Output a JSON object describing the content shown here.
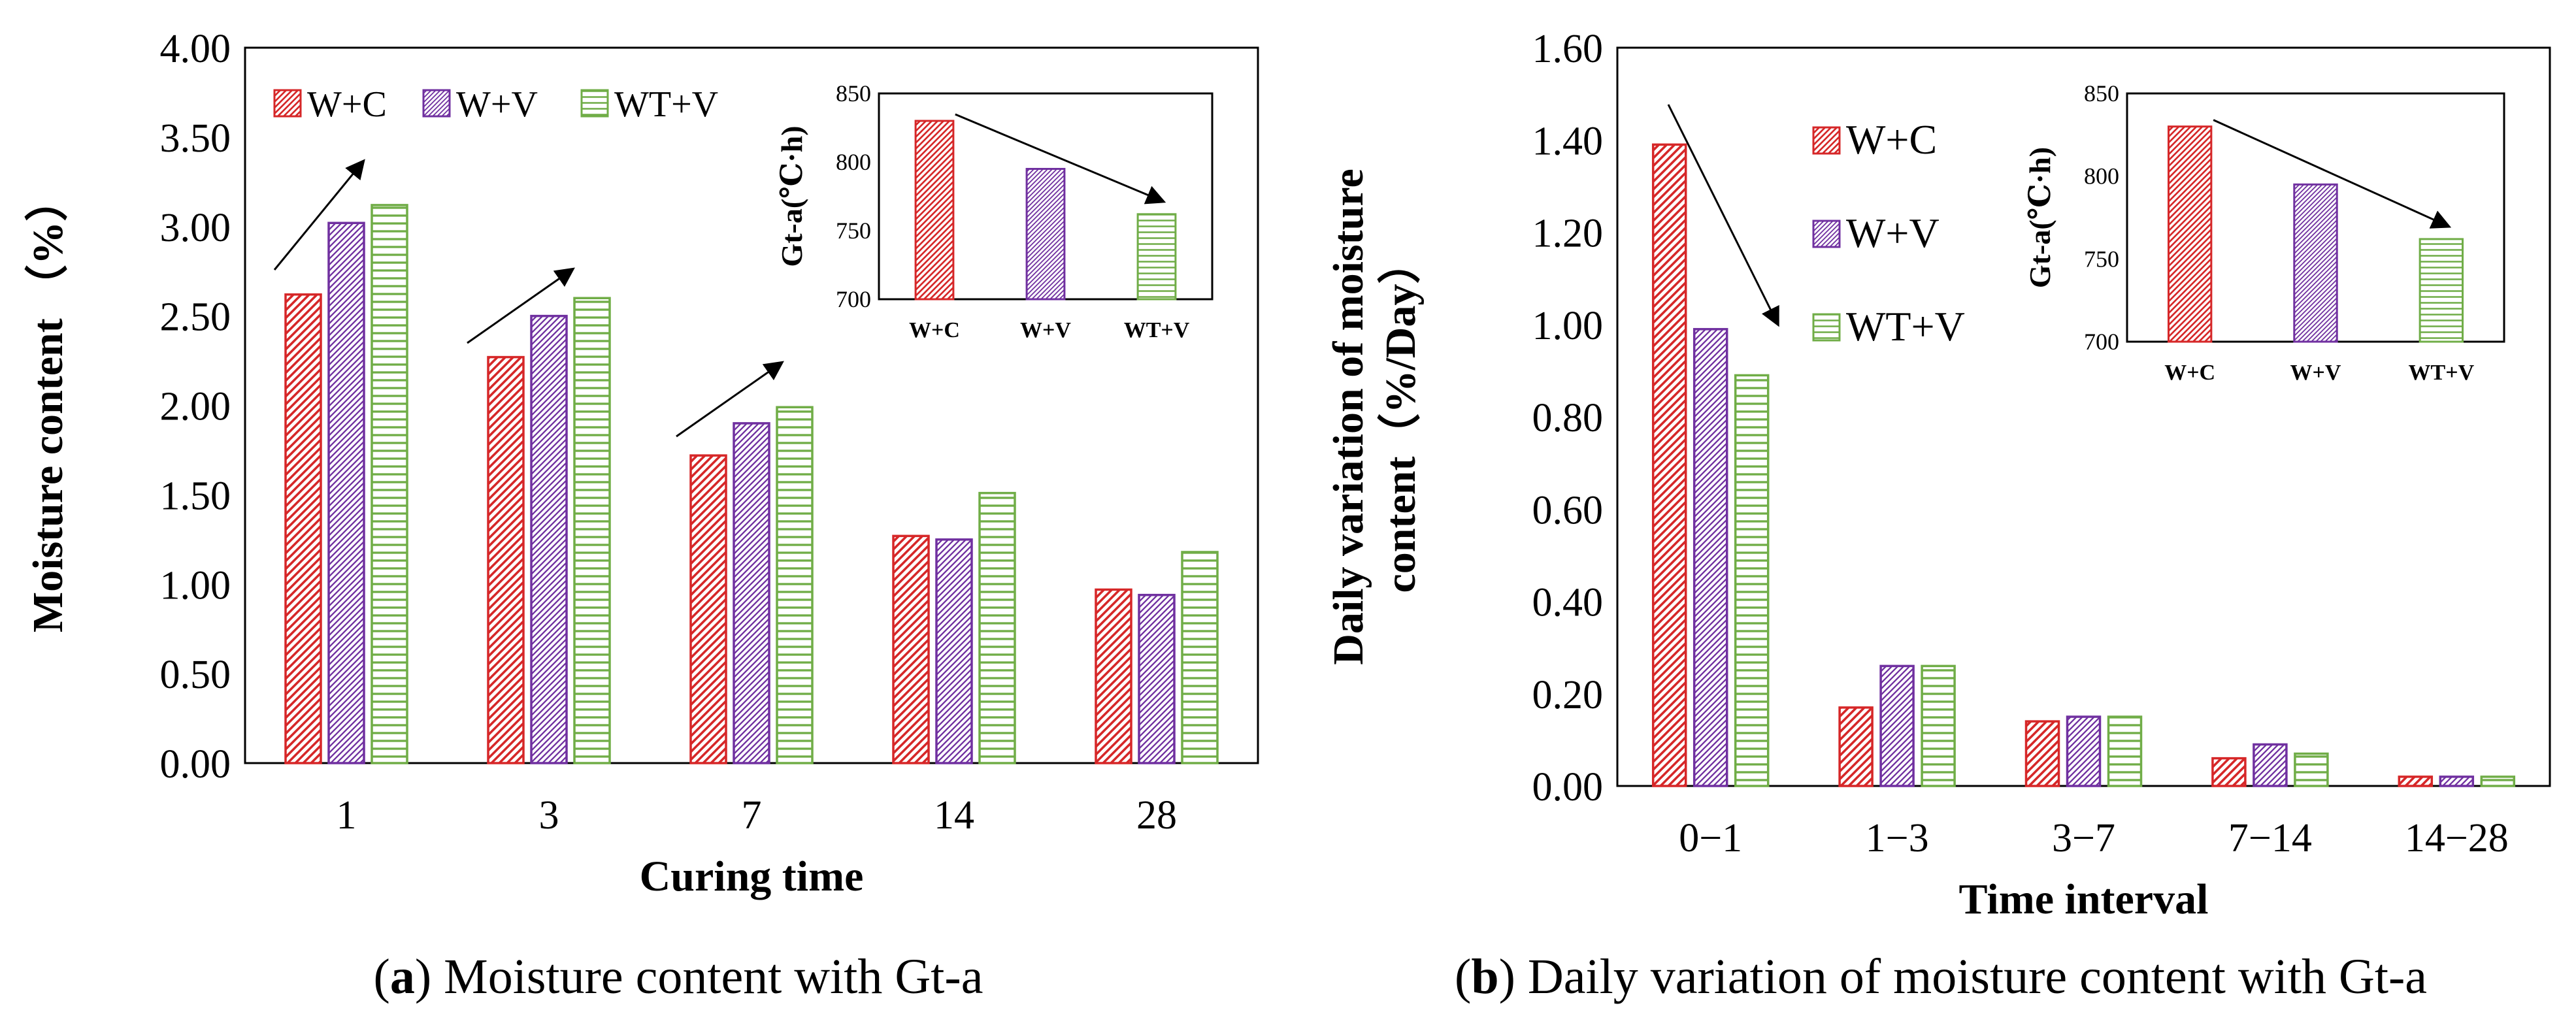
{
  "colors": {
    "red": "#d62728",
    "purple": "#7030a0",
    "green": "#70ad47",
    "axis": "#000000"
  },
  "series_patterns": [
    "diagonal-lines",
    "dense-diagonal-lines",
    "horizontal-lines"
  ],
  "chart_data": [
    {
      "id": "a",
      "type": "bar",
      "caption_letter": "a",
      "caption_rest": ") Moisture content with Gt-a",
      "title": "",
      "xlabel": "Curing time",
      "ylabel": "Moisture content （%）",
      "categories": [
        "1",
        "3",
        "7",
        "14",
        "28"
      ],
      "ylim": [
        0,
        4.0
      ],
      "yticks": [
        "0.00",
        "0.50",
        "1.00",
        "1.50",
        "2.00",
        "2.50",
        "3.00",
        "3.50",
        "4.00"
      ],
      "legend": [
        "W+C",
        "W+V",
        "WT+V"
      ],
      "legend_position": "top-left",
      "series": [
        {
          "name": "W+C",
          "values": [
            2.62,
            2.27,
            1.72,
            1.27,
            0.97
          ]
        },
        {
          "name": "W+V",
          "values": [
            3.02,
            2.5,
            1.9,
            1.25,
            0.94
          ]
        },
        {
          "name": "WT+V",
          "values": [
            3.12,
            2.6,
            1.99,
            1.51,
            1.18
          ]
        }
      ],
      "annotations": [
        "increasing trend arrows over groups 1, 3 and 7"
      ],
      "inset": {
        "type": "bar",
        "ylabel": "Gt-a(℃·h)",
        "categories": [
          "W+C",
          "W+V",
          "WT+V"
        ],
        "values": [
          830,
          795,
          762
        ],
        "ylim": [
          700,
          850
        ],
        "yticks": [
          "700",
          "750",
          "800",
          "850"
        ],
        "position": "top-right",
        "annotation": "decreasing trend arrow"
      }
    },
    {
      "id": "b",
      "type": "bar",
      "caption_letter": "b",
      "caption_rest": ") Daily variation of moisture content with Gt-a",
      "title": "",
      "xlabel": "Time interval",
      "ylabel_lines": [
        "Daily variation of moisture",
        "content（%/Day）"
      ],
      "categories": [
        "0−1",
        "1−3",
        "3−7",
        "7−14",
        "14−28"
      ],
      "ylim": [
        0,
        1.6
      ],
      "yticks": [
        "0.00",
        "0.20",
        "0.40",
        "0.60",
        "0.80",
        "1.00",
        "1.20",
        "1.40",
        "1.60"
      ],
      "legend": [
        "W+C",
        "W+V",
        "WT+V"
      ],
      "legend_position": "top-center",
      "series": [
        {
          "name": "W+C",
          "values": [
            1.39,
            0.17,
            0.14,
            0.06,
            0.02
          ]
        },
        {
          "name": "W+V",
          "values": [
            0.99,
            0.26,
            0.15,
            0.09,
            0.02
          ]
        },
        {
          "name": "WT+V",
          "values": [
            0.89,
            0.26,
            0.15,
            0.07,
            0.02
          ]
        }
      ],
      "annotations": [
        "decreasing trend arrow over group 0−1"
      ],
      "inset": {
        "type": "bar",
        "ylabel": "Gt-a(℃·h)",
        "categories": [
          "W+C",
          "W+V",
          "WT+V"
        ],
        "values": [
          830,
          795,
          762
        ],
        "ylim": [
          700,
          850
        ],
        "yticks": [
          "700",
          "750",
          "800",
          "850"
        ],
        "position": "top-right",
        "annotation": "decreasing trend arrow"
      }
    }
  ]
}
